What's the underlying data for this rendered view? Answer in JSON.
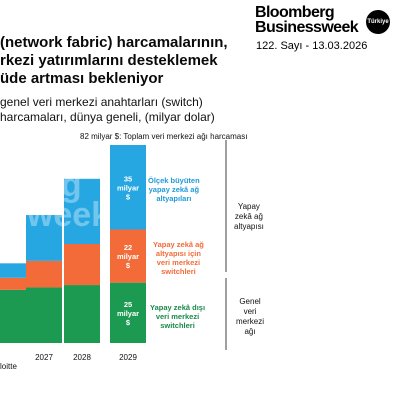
{
  "brand": {
    "line1": "Bloomberg",
    "line2": "Businessweek",
    "badge": "Türkiye"
  },
  "issue": "122. Sayı - 13.03.2026",
  "title": {
    "line1": "(network fabric) harcamalarının,",
    "line2": "rkezi yatırımlarını desteklemek",
    "line3": "üde artması bekleniyor"
  },
  "subtitle": {
    "line1": "genel veri merkezi anahtarları (switch)",
    "line2": "harcamaları, dünya geneli, (milyar dolar)"
  },
  "watermark": "berg\nsweek",
  "chart_data": {
    "type": "bar",
    "stacked": true,
    "total_label": "82 milyar $: Toplam veri merkezi ağı harcaması",
    "categories": [
      "",
      "2027",
      "2028",
      "2029"
    ],
    "series": [
      {
        "name": "Yapay zekâ dışı veri merkezi switchleri",
        "color": "#1c9a52",
        "values": [
          22,
          23,
          24,
          25
        ]
      },
      {
        "name": "Yapay zekâ ağ altyapısı için veri merkezi switchleri",
        "color": "#f26b38",
        "values": [
          5,
          11,
          17,
          22
        ]
      },
      {
        "name": "Ölçek büyüten yapay zekâ ağ altyapıları",
        "color": "#27a7e2",
        "values": [
          6,
          19,
          27,
          35
        ]
      }
    ],
    "segment_labels": {
      "2029": [
        "25\nmilyar\n$",
        "22\nmilyar\n$",
        "35\nmilyar\n$"
      ]
    },
    "ylim": [
      0,
      82
    ]
  },
  "annotations": {
    "blue": [
      "Ölçek büyüten",
      "yapay zekâ ağ",
      "altyapıları"
    ],
    "orange": [
      "Yapay zekâ ağ",
      "altyapısı için",
      "veri merkezi",
      "switchleri"
    ],
    "green": [
      "Yapay zekâ dışı",
      "veri merkezi",
      "switchleri"
    ]
  },
  "groups": {
    "ai": [
      "Yapay",
      "zekâ ağ",
      "altyapısı"
    ],
    "general": [
      "Genel",
      "veri",
      "merkezi",
      "ağı"
    ]
  },
  "source": "loitte"
}
